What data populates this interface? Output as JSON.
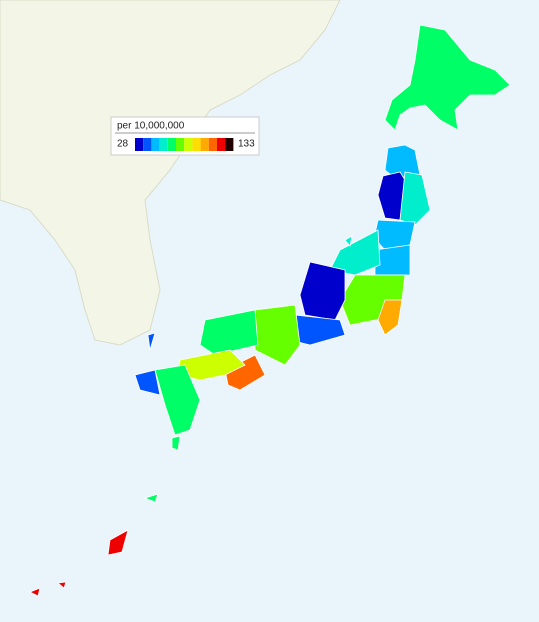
{
  "chart_data": {
    "type": "choropleth",
    "legend_title": "per 10,000,000",
    "range": [
      28,
      133
    ],
    "colors": [
      "#0000cc",
      "#0055ff",
      "#00bbff",
      "#00eecc",
      "#00ff66",
      "#66ff00",
      "#ccff00",
      "#ffdd00",
      "#ffaa00",
      "#ff6600",
      "#ee0000",
      "#220000"
    ],
    "values": [
      66,
      52,
      31,
      62,
      47,
      47,
      60,
      80,
      100,
      30,
      40,
      78,
      110,
      64,
      82,
      63,
      40,
      118,
      118,
      64
    ]
  }
}
